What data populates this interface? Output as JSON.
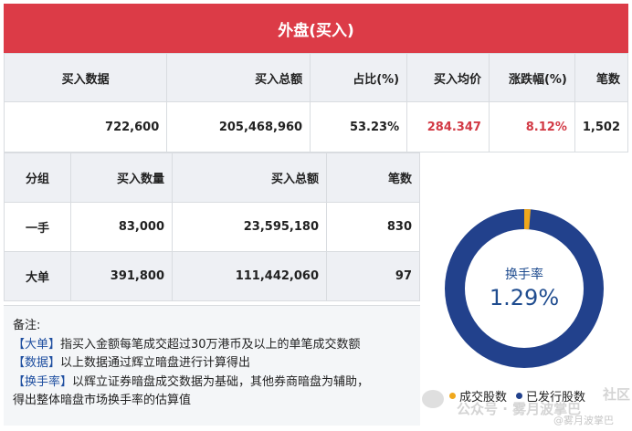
{
  "title": "外盘(买入)",
  "summary": {
    "headers": [
      "买入数据",
      "买入总额",
      "占比(%)",
      "买入均价",
      "涨跌幅(%)",
      "笔数"
    ],
    "values": [
      "722,600",
      "205,468,960",
      "53.23%",
      "284.347",
      "8.12%",
      "1,502"
    ]
  },
  "groups": {
    "headers": [
      "分组",
      "买入数量",
      "买入总额",
      "笔数"
    ],
    "rows": [
      [
        "一手",
        "83,000",
        "23,595,180",
        "830"
      ],
      [
        "大单",
        "391,800",
        "111,442,060",
        "97"
      ]
    ]
  },
  "notes": {
    "title": "备注:",
    "lines": [
      {
        "tag": "【大单】",
        "text": "指买入金额每笔成交超过30万港币及以上的单笔成交数额"
      },
      {
        "tag": "【数据】",
        "text": "以上数据通过辉立暗盘进行计算得出"
      },
      {
        "tag": "【换手率】",
        "text": "以辉立证券暗盘成交数据为基础，其他券商暗盘为辅助，"
      },
      {
        "tag": "",
        "text": "得出整体暗盘市场换手率的估算值"
      }
    ]
  },
  "turnover": {
    "label": "换手率",
    "value": "1.29%",
    "fraction": 0.0129,
    "legend": [
      "成交股数",
      "已发行股数"
    ],
    "colors": {
      "traded": "#f0a81c",
      "issued": "#22418c"
    }
  },
  "watermark": {
    "text": "公众号 · 雾月波掌巴",
    "sub": "@雾月波掌巴",
    "corner": "社区"
  }
}
